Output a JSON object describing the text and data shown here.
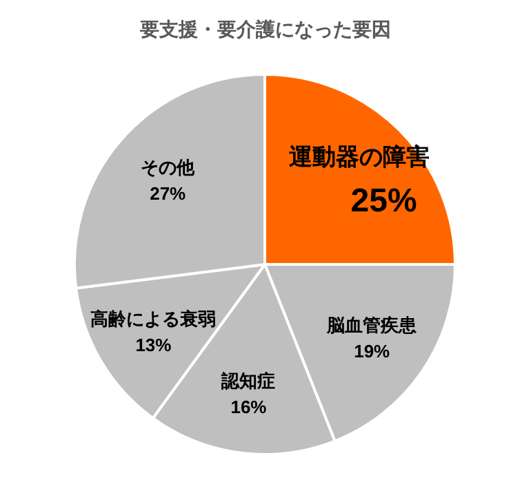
{
  "chart_data": {
    "type": "pie",
    "title": "要支援・要介護になった要因",
    "categories": [
      "運動器の障害",
      "脳血管疾患",
      "認知症",
      "高齢による衰弱",
      "その他"
    ],
    "values": [
      25,
      19,
      16,
      13,
      27
    ],
    "value_labels": [
      "25%",
      "19%",
      "16%",
      "13%",
      "27%"
    ],
    "colors": [
      "#ff6600",
      "#bfbfbf",
      "#bfbfbf",
      "#bfbfbf",
      "#bfbfbf"
    ]
  }
}
